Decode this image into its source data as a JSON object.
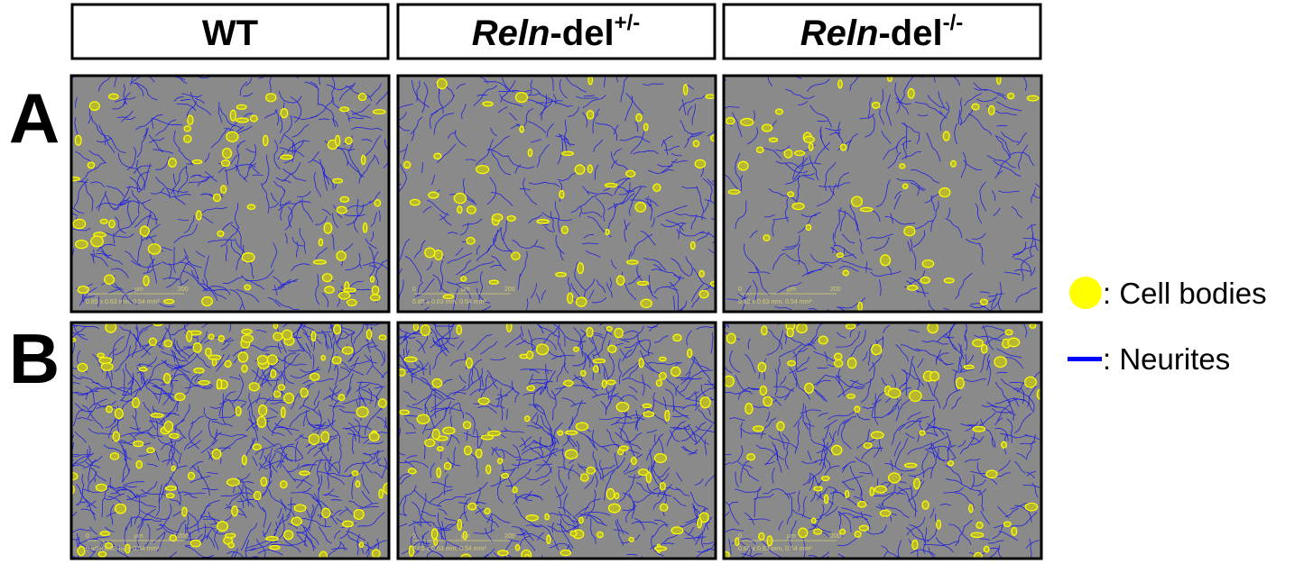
{
  "header": {
    "columns": [
      {
        "text": "WT"
      },
      {
        "italic": "Reln",
        "text": "-del",
        "sup": "+/-"
      },
      {
        "italic": "Reln",
        "text": "-del",
        "sup": "-/-"
      }
    ]
  },
  "rows": [
    {
      "label": "A"
    },
    {
      "label": "B"
    }
  ],
  "panels": [
    {
      "scale_start": "0",
      "scale_unit": "µm",
      "scale_end": "200",
      "info": "0.85 x 0.63 mm, 0.54 mm²"
    },
    {
      "scale_start": "0",
      "scale_unit": "µm",
      "scale_end": "200",
      "info": "0.85 x 0.63 mm, 0.54 mm²"
    },
    {
      "scale_start": "0",
      "scale_unit": "µm",
      "scale_end": "200",
      "info": "0.85 x 0.63 mm, 0.54 mm²"
    },
    {
      "scale_start": "0",
      "scale_unit": "µm",
      "scale_end": "200",
      "info": "0.85 x 0.63 mm, 0.54 mm²"
    },
    {
      "scale_start": "0",
      "scale_unit": "µm",
      "scale_end": "200",
      "info": "0.85 x 0.63 mm, 0.54 mm²"
    },
    {
      "scale_start": "0",
      "scale_unit": "µm",
      "scale_end": "200",
      "info": "0.85 x 0.63 mm, 0.54 mm²"
    }
  ],
  "legend": {
    "cell_bodies": ": Cell bodies",
    "neurites": ": Neurites"
  }
}
